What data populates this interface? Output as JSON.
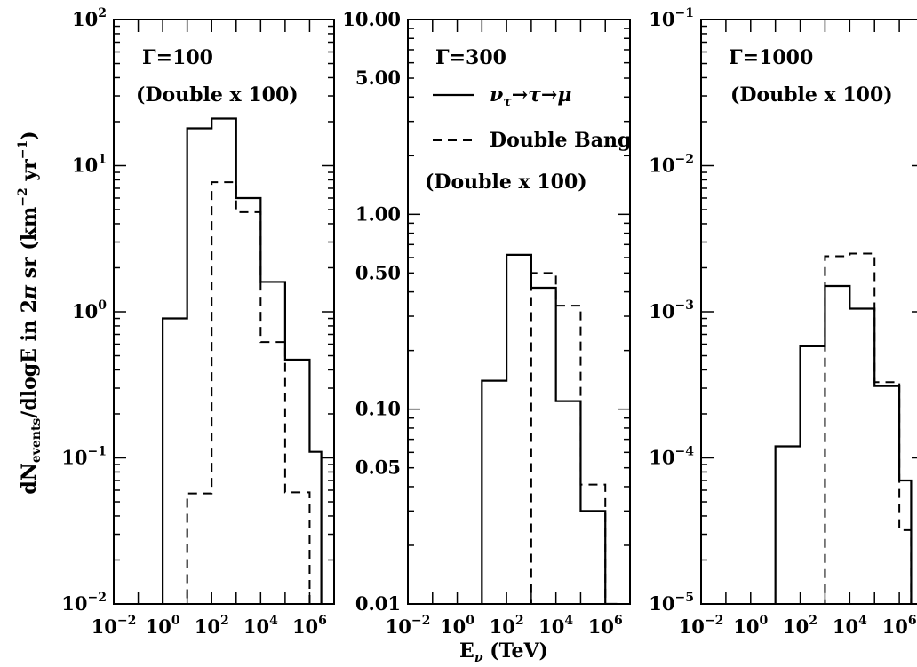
{
  "chart_data": [
    {
      "type": "histogram",
      "panel_label": "Γ=100",
      "note": "(Double x 100)",
      "xscale": "log",
      "yscale": "log",
      "xlim": [
        0.01,
        10000000
      ],
      "ylim": [
        0.01,
        100
      ],
      "xticks": [
        0.01,
        1,
        100,
        10000,
        1000000
      ],
      "xtick_labels": [
        [
          "10",
          "−2"
        ],
        [
          "10",
          "0"
        ],
        [
          "10",
          "2"
        ],
        [
          "10",
          "4"
        ],
        [
          "10",
          "6"
        ]
      ],
      "yticks": [
        0.01,
        0.1,
        1,
        10,
        100
      ],
      "ytick_labels": [
        [
          "10",
          "−2"
        ],
        [
          "10",
          "−1"
        ],
        [
          "10",
          "0"
        ],
        [
          "10",
          "1"
        ],
        [
          "10",
          "2"
        ]
      ],
      "bin_edges": [
        1,
        10,
        100,
        1000,
        10000,
        100000,
        1000000,
        3000000
      ],
      "series": [
        {
          "legend_label": "ντ→τ→μ",
          "style": "solid",
          "values": [
            0.9,
            18,
            21,
            6,
            1.6,
            0.47,
            0.11
          ]
        },
        {
          "legend_label": "Double Bang",
          "style": "dashed",
          "values": [
            0.01,
            0.057,
            7.7,
            4.8,
            0.62,
            0.058,
            0.01
          ]
        }
      ]
    },
    {
      "type": "histogram",
      "panel_label": "Γ=300",
      "note": "(Double x 100)",
      "xscale": "log",
      "yscale": "log",
      "xlim": [
        0.01,
        10000000
      ],
      "ylim": [
        0.01,
        10
      ],
      "xticks": [
        0.01,
        1,
        100,
        10000,
        1000000
      ],
      "xtick_labels": [
        [
          "10",
          "−2"
        ],
        [
          "10",
          "0"
        ],
        [
          "10",
          "2"
        ],
        [
          "10",
          "4"
        ],
        [
          "10",
          "6"
        ]
      ],
      "yticks": [
        0.01,
        0.05,
        0.1,
        0.5,
        1,
        5,
        10
      ],
      "ytick_labels": [
        [
          "0.01",
          ""
        ],
        [
          "0.05",
          ""
        ],
        [
          "0.10",
          ""
        ],
        [
          "0.50",
          ""
        ],
        [
          "1.00",
          ""
        ],
        [
          "5.00",
          ""
        ],
        [
          "10.00",
          ""
        ]
      ],
      "bin_edges": [
        10,
        100,
        1000,
        10000,
        100000,
        1000000,
        3000000
      ],
      "series": [
        {
          "legend_label": "ντ→τ→μ",
          "style": "solid",
          "values": [
            0.14,
            0.62,
            0.42,
            0.11,
            0.03,
            0.01
          ]
        },
        {
          "legend_label": "Double Bang",
          "style": "dashed",
          "values": [
            0.01,
            0.01,
            0.5,
            0.34,
            0.041,
            0.01
          ]
        }
      ]
    },
    {
      "type": "histogram",
      "panel_label": "Γ=1000",
      "note": "(Double x 100)",
      "xscale": "log",
      "yscale": "log",
      "xlim": [
        0.01,
        10000000
      ],
      "ylim": [
        1e-05,
        0.1
      ],
      "xticks": [
        0.01,
        1,
        100,
        10000,
        1000000
      ],
      "xtick_labels": [
        [
          "10",
          "−2"
        ],
        [
          "10",
          "0"
        ],
        [
          "10",
          "2"
        ],
        [
          "10",
          "4"
        ],
        [
          "10",
          "6"
        ]
      ],
      "yticks": [
        1e-05,
        0.0001,
        0.001,
        0.01,
        0.1
      ],
      "ytick_labels": [
        [
          "10",
          "−5"
        ],
        [
          "10",
          "−4"
        ],
        [
          "10",
          "−3"
        ],
        [
          "10",
          "−2"
        ],
        [
          "10",
          "−1"
        ]
      ],
      "bin_edges": [
        10,
        100,
        1000,
        10000,
        100000,
        1000000,
        3000000
      ],
      "series": [
        {
          "legend_label": "ντ→τ→μ",
          "style": "solid",
          "values": [
            0.00012,
            0.00058,
            0.0015,
            0.00105,
            0.00031,
            7e-05
          ]
        },
        {
          "legend_label": "Double Bang",
          "style": "dashed",
          "values": [
            1e-05,
            1e-05,
            0.0024,
            0.0025,
            0.00033,
            3.2e-05
          ]
        }
      ]
    }
  ],
  "axes": {
    "ylabel": {
      "base": "dN",
      "sub": "events",
      "mid": "/dlogE in 2",
      "pi": "π",
      "rest": " sr (km",
      "sup1": "−2",
      "yr": " yr",
      "sup2": "−1",
      "close": ")"
    },
    "xlabel": {
      "base": "E",
      "sub": "ν",
      "rest": " (TeV)"
    }
  },
  "legend": {
    "solid_label": {
      "nu": "ν",
      "tau": "τ",
      "arrows": "→τ→μ"
    },
    "dashed_label": "Double Bang"
  }
}
